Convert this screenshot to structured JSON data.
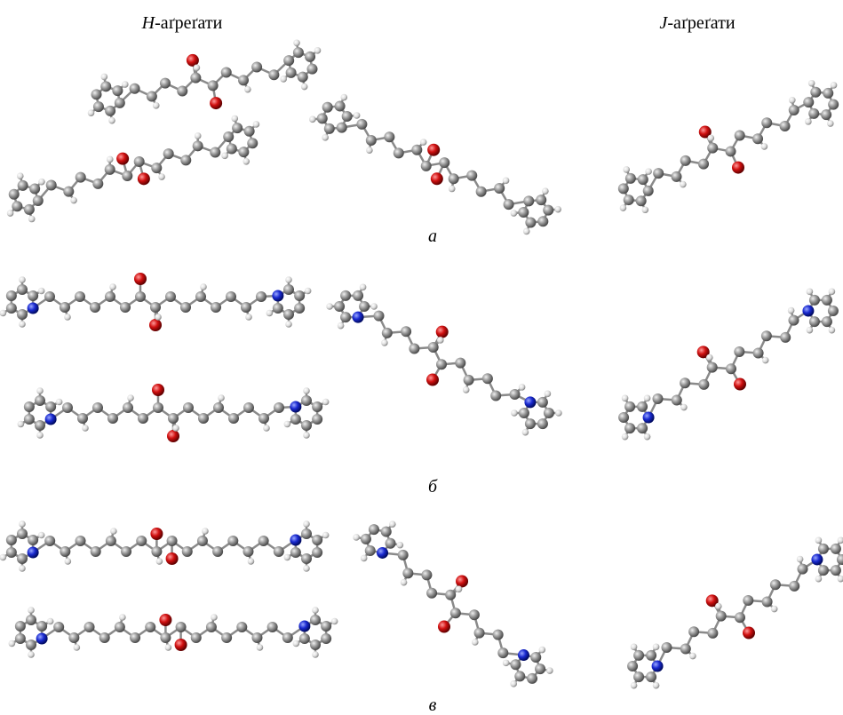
{
  "columns": [
    {
      "symbol": "H",
      "text": "-аґреґати"
    },
    {
      "symbol": "J",
      "text": "-аґреґати"
    }
  ],
  "panels": [
    "а",
    "б",
    "в"
  ]
}
